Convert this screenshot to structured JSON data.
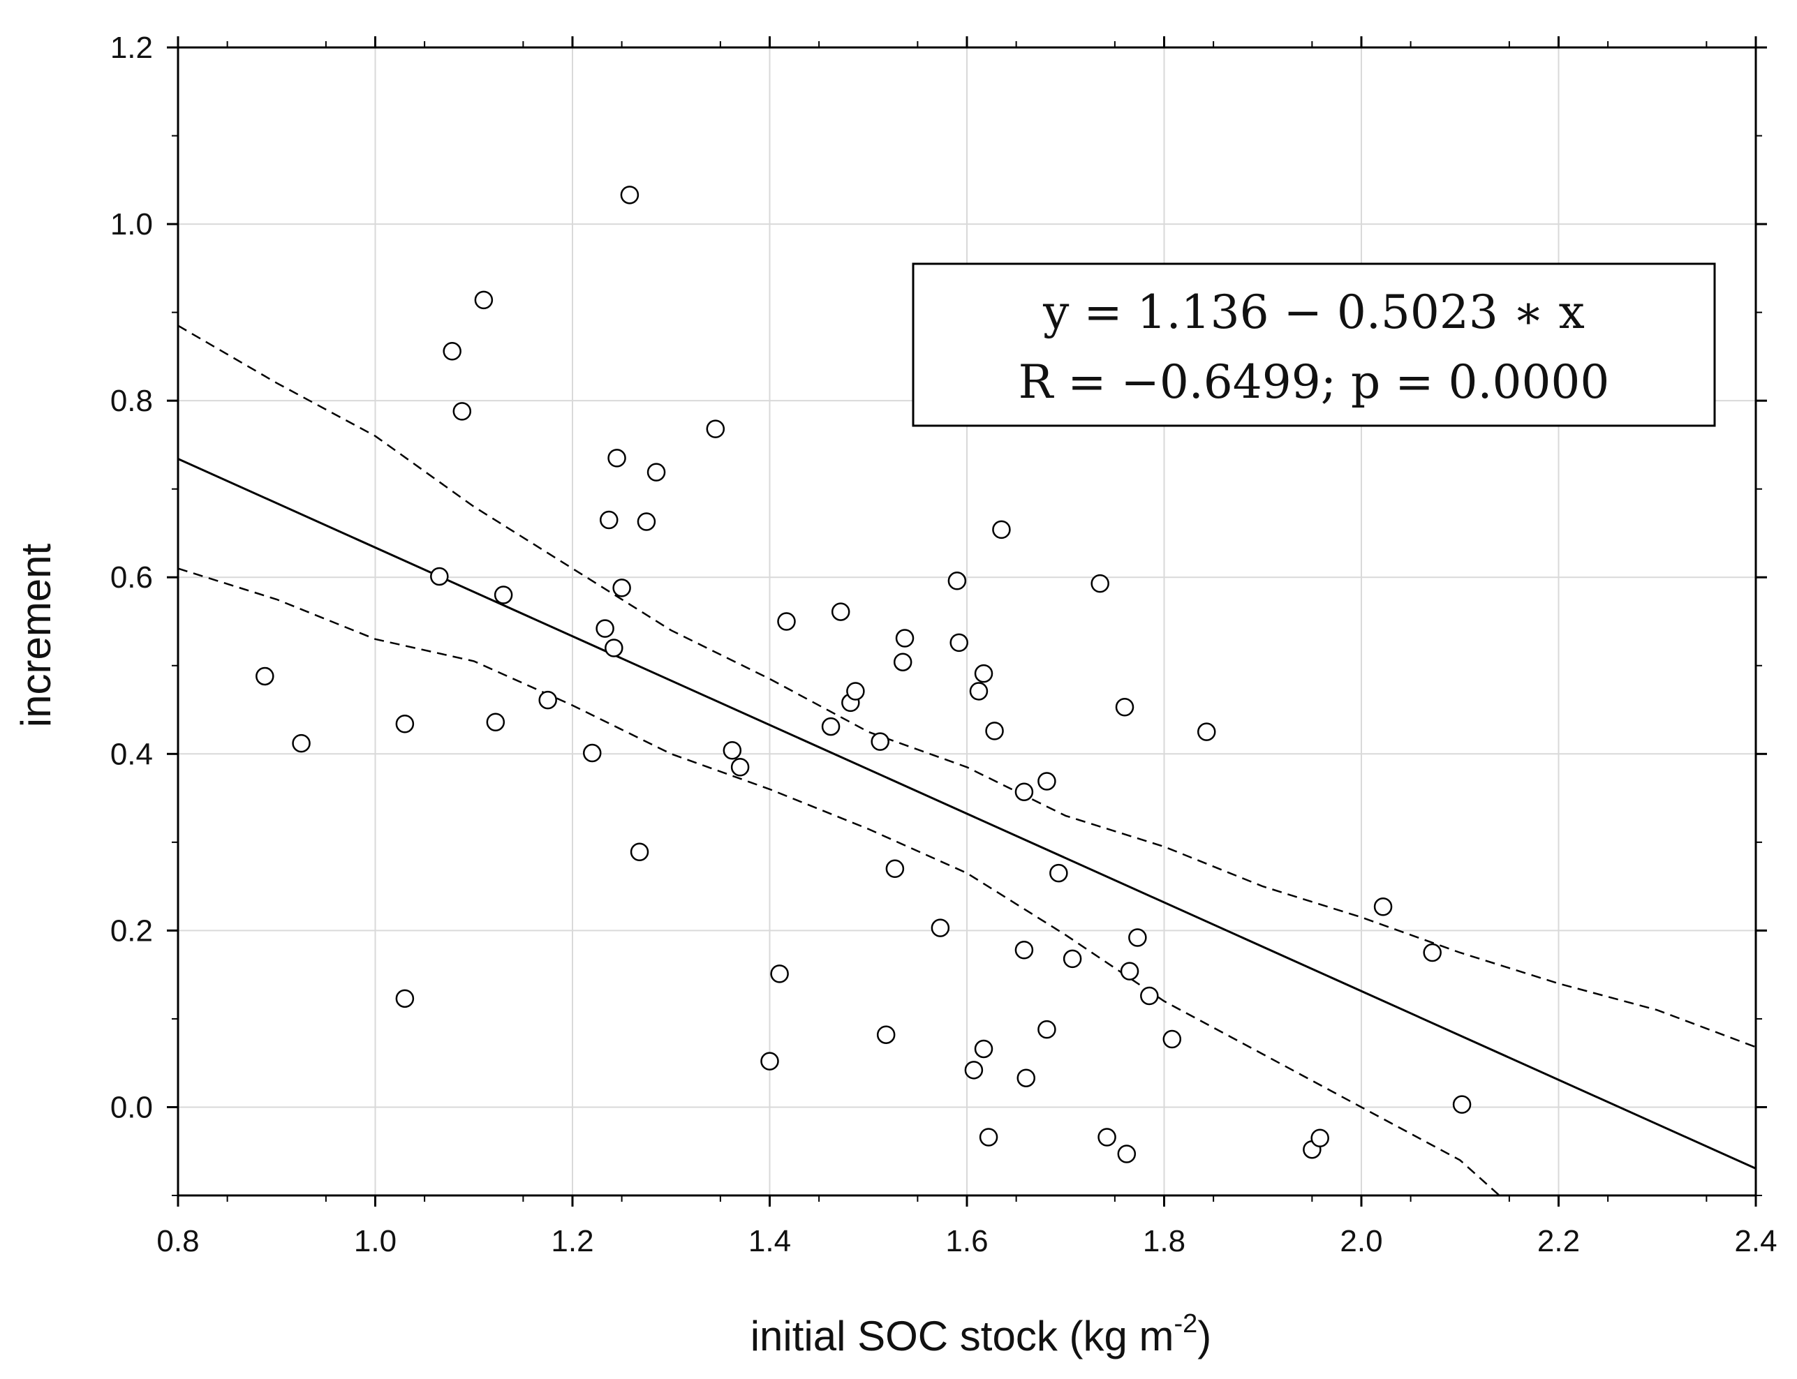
{
  "chart_data": {
    "type": "scatter",
    "title": "",
    "xlabel": "initial SOC stock (kg m",
    "xlabel_sup": "-2",
    "xlabel_close": ")",
    "ylabel": "increment",
    "xlim": [
      0.8,
      2.4
    ],
    "ylim": [
      -0.1,
      1.2
    ],
    "xticks": [
      "0.8",
      "1.0",
      "1.2",
      "1.4",
      "1.6",
      "1.8",
      "2.0",
      "2.2",
      "2.4"
    ],
    "yticks": [
      "0.0",
      "0.2",
      "0.4",
      "0.6",
      "0.8",
      "1.0",
      "1.2"
    ],
    "grid": true,
    "annotation": {
      "line1": "y = 1.136 − 0.5023 ∗ x",
      "line2": "R = −0.6499; p = 0.0000",
      "placement": "top-right"
    },
    "regression": {
      "intercept": 1.136,
      "slope": -0.5023
    },
    "confidence_upper": [
      {
        "x": 0.8,
        "y": 0.885
      },
      {
        "x": 0.9,
        "y": 0.82
      },
      {
        "x": 1.0,
        "y": 0.76
      },
      {
        "x": 1.1,
        "y": 0.68
      },
      {
        "x": 1.2,
        "y": 0.61
      },
      {
        "x": 1.3,
        "y": 0.54
      },
      {
        "x": 1.4,
        "y": 0.485
      },
      {
        "x": 1.5,
        "y": 0.425
      },
      {
        "x": 1.6,
        "y": 0.385
      },
      {
        "x": 1.7,
        "y": 0.33
      },
      {
        "x": 1.8,
        "y": 0.295
      },
      {
        "x": 1.9,
        "y": 0.25
      },
      {
        "x": 2.0,
        "y": 0.215
      },
      {
        "x": 2.1,
        "y": 0.175
      },
      {
        "x": 2.2,
        "y": 0.14
      },
      {
        "x": 2.3,
        "y": 0.11
      },
      {
        "x": 2.4,
        "y": 0.068
      }
    ],
    "confidence_lower": [
      {
        "x": 0.8,
        "y": 0.61
      },
      {
        "x": 0.9,
        "y": 0.575
      },
      {
        "x": 1.0,
        "y": 0.53
      },
      {
        "x": 1.1,
        "y": 0.505
      },
      {
        "x": 1.2,
        "y": 0.455
      },
      {
        "x": 1.3,
        "y": 0.4
      },
      {
        "x": 1.4,
        "y": 0.36
      },
      {
        "x": 1.5,
        "y": 0.315
      },
      {
        "x": 1.6,
        "y": 0.265
      },
      {
        "x": 1.7,
        "y": 0.195
      },
      {
        "x": 1.8,
        "y": 0.12
      },
      {
        "x": 1.9,
        "y": 0.06
      },
      {
        "x": 2.0,
        "y": 0.0
      },
      {
        "x": 2.05,
        "y": -0.03
      },
      {
        "x": 2.1,
        "y": -0.06
      },
      {
        "x": 2.14,
        "y": -0.1
      }
    ],
    "points": [
      {
        "x": 0.888,
        "y": 0.488
      },
      {
        "x": 0.925,
        "y": 0.412
      },
      {
        "x": 1.03,
        "y": 0.434
      },
      {
        "x": 1.03,
        "y": 0.123
      },
      {
        "x": 1.065,
        "y": 0.601
      },
      {
        "x": 1.078,
        "y": 0.856
      },
      {
        "x": 1.088,
        "y": 0.788
      },
      {
        "x": 1.11,
        "y": 0.914
      },
      {
        "x": 1.122,
        "y": 0.436
      },
      {
        "x": 1.13,
        "y": 0.58
      },
      {
        "x": 1.175,
        "y": 0.461
      },
      {
        "x": 1.22,
        "y": 0.401
      },
      {
        "x": 1.233,
        "y": 0.542
      },
      {
        "x": 1.237,
        "y": 0.665
      },
      {
        "x": 1.242,
        "y": 0.52
      },
      {
        "x": 1.245,
        "y": 0.735
      },
      {
        "x": 1.25,
        "y": 0.588
      },
      {
        "x": 1.258,
        "y": 1.033
      },
      {
        "x": 1.268,
        "y": 0.289
      },
      {
        "x": 1.275,
        "y": 0.663
      },
      {
        "x": 1.285,
        "y": 0.719
      },
      {
        "x": 1.345,
        "y": 0.768
      },
      {
        "x": 1.362,
        "y": 0.404
      },
      {
        "x": 1.37,
        "y": 0.385
      },
      {
        "x": 1.4,
        "y": 0.052
      },
      {
        "x": 1.41,
        "y": 0.151
      },
      {
        "x": 1.417,
        "y": 0.55
      },
      {
        "x": 1.462,
        "y": 0.431
      },
      {
        "x": 1.472,
        "y": 0.561
      },
      {
        "x": 1.482,
        "y": 0.458
      },
      {
        "x": 1.487,
        "y": 0.471
      },
      {
        "x": 1.512,
        "y": 0.414
      },
      {
        "x": 1.518,
        "y": 0.082
      },
      {
        "x": 1.527,
        "y": 0.27
      },
      {
        "x": 1.535,
        "y": 0.504
      },
      {
        "x": 1.537,
        "y": 0.531
      },
      {
        "x": 1.573,
        "y": 0.203
      },
      {
        "x": 1.59,
        "y": 0.596
      },
      {
        "x": 1.592,
        "y": 0.526
      },
      {
        "x": 1.607,
        "y": 0.042
      },
      {
        "x": 1.612,
        "y": 0.471
      },
      {
        "x": 1.617,
        "y": 0.066
      },
      {
        "x": 1.617,
        "y": 0.491
      },
      {
        "x": 1.622,
        "y": -0.034
      },
      {
        "x": 1.628,
        "y": 0.426
      },
      {
        "x": 1.635,
        "y": 0.654
      },
      {
        "x": 1.658,
        "y": 0.357
      },
      {
        "x": 1.658,
        "y": 0.178
      },
      {
        "x": 1.66,
        "y": 0.033
      },
      {
        "x": 1.681,
        "y": 0.369
      },
      {
        "x": 1.681,
        "y": 0.088
      },
      {
        "x": 1.693,
        "y": 0.265
      },
      {
        "x": 1.707,
        "y": 0.168
      },
      {
        "x": 1.735,
        "y": 0.593
      },
      {
        "x": 1.742,
        "y": -0.034
      },
      {
        "x": 1.76,
        "y": 0.453
      },
      {
        "x": 1.762,
        "y": -0.053
      },
      {
        "x": 1.765,
        "y": 0.154
      },
      {
        "x": 1.773,
        "y": 0.192
      },
      {
        "x": 1.785,
        "y": 0.126
      },
      {
        "x": 1.808,
        "y": 0.077
      },
      {
        "x": 1.843,
        "y": 0.425
      },
      {
        "x": 1.95,
        "y": -0.048
      },
      {
        "x": 1.958,
        "y": -0.035
      },
      {
        "x": 2.022,
        "y": 0.227
      },
      {
        "x": 2.072,
        "y": 0.175
      },
      {
        "x": 2.102,
        "y": 0.003
      }
    ]
  }
}
